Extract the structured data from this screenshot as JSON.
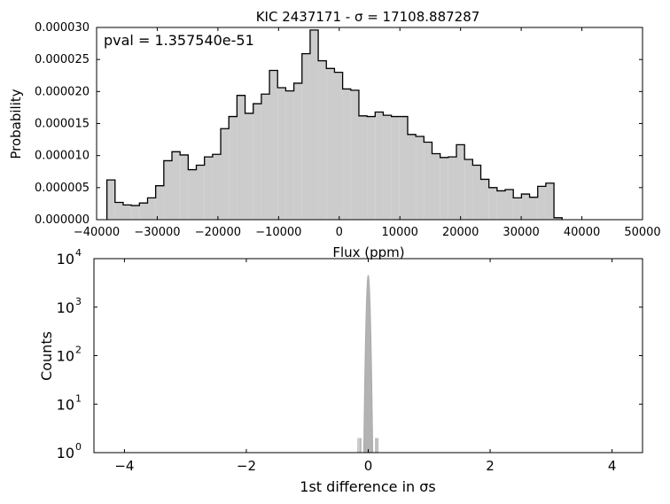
{
  "chart_data": [
    {
      "type": "histogram",
      "title": "KIC 2437171 - σ = 17108.887287",
      "annotation": "pval = 1.357540e-51",
      "xlabel": "Flux (ppm)",
      "ylabel": "Probability",
      "xlim": [
        -40000,
        50000
      ],
      "ylim": [
        0,
        3e-05
      ],
      "xticks": [
        "−40000",
        "−30000",
        "−20000",
        "−10000",
        "0",
        "10000",
        "20000",
        "30000",
        "40000",
        "50000"
      ],
      "xtick_values": [
        -40000,
        -30000,
        -20000,
        -10000,
        0,
        10000,
        20000,
        30000,
        40000,
        50000
      ],
      "yticks": [
        "0.000000",
        "0.000005",
        "0.000010",
        "0.000015",
        "0.000020",
        "0.000025",
        "0.000030"
      ],
      "ytick_values": [
        0,
        5e-06,
        1e-05,
        1.5e-05,
        2e-05,
        2.5e-05,
        3e-05
      ],
      "bin_start": -38300,
      "bin_width": 1340,
      "values": [
        6.2e-06,
        2.7e-06,
        2.3e-06,
        2.2e-06,
        2.6e-06,
        3.4e-06,
        5.3e-06,
        9.2e-06,
        1.06e-05,
        1.01e-05,
        7.8e-06,
        8.5e-06,
        9.8e-06,
        1.02e-05,
        1.42e-05,
        1.61e-05,
        1.94e-05,
        1.66e-05,
        1.81e-05,
        1.96e-05,
        2.33e-05,
        2.06e-05,
        2.01e-05,
        2.13e-05,
        2.59e-05,
        2.96e-05,
        2.48e-05,
        2.36e-05,
        2.3e-05,
        2.04e-05,
        2.02e-05,
        1.62e-05,
        1.61e-05,
        1.68e-05,
        1.63e-05,
        1.61e-05,
        1.61e-05,
        1.33e-05,
        1.3e-05,
        1.21e-05,
        1.03e-05,
        9.7e-06,
        9.8e-06,
        1.17e-05,
        9.4e-06,
        8.5e-06,
        6.3e-06,
        5e-06,
        4.5e-06,
        4.7e-06,
        3.4e-06,
        4e-06,
        3.5e-06,
        5.2e-06,
        5.7e-06,
        3e-07
      ],
      "fill_color": "#cccccc",
      "edge_color": "#000000",
      "grid": false
    },
    {
      "type": "histogram",
      "xlabel": "1st difference in σs",
      "ylabel": "Counts",
      "xlim": [
        -4.5,
        4.5
      ],
      "ylim": [
        1,
        10000
      ],
      "yscale": "log",
      "xticks": [
        "−4",
        "−2",
        "0",
        "2",
        "4"
      ],
      "xtick_values": [
        -4,
        -2,
        0,
        2,
        4
      ],
      "yticks": [
        {
          "base": "10",
          "exp": "0"
        },
        {
          "base": "10",
          "exp": "1"
        },
        {
          "base": "10",
          "exp": "2"
        },
        {
          "base": "10",
          "exp": "3"
        },
        {
          "base": "10",
          "exp": "4"
        }
      ],
      "ytick_values": [
        1,
        10,
        100,
        1000,
        10000
      ],
      "peak_center": 0.0,
      "peak_count": 4500,
      "peak_width": 0.018,
      "x_range": [
        -0.11,
        0.11
      ],
      "sparse_x": [
        -0.17,
        -0.15,
        -0.13,
        -0.12,
        0.12,
        0.13,
        0.14,
        0.16
      ],
      "fill_color": "#b3b3b3",
      "grid": false
    }
  ]
}
